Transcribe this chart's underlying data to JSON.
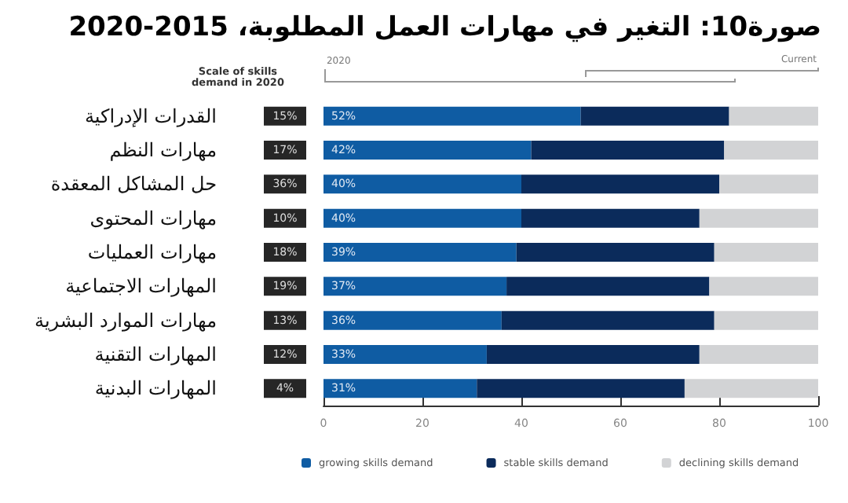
{
  "chart_data": {
    "type": "bar",
    "orientation": "horizontal",
    "stacked": true,
    "title": "صورة10: التغير في مهارات العمل المطلوبة، 2015-2020",
    "categories": [
      "القدرات الإدراكية",
      "مهارات النظم",
      "حل المشاكل المعقدة",
      "مهارات المحتوى",
      "مهارات العمليات",
      "المهارات الاجتماعية",
      "مهارات الموارد البشرية",
      "المهارات التقنية",
      "المهارات البدنية"
    ],
    "series": [
      {
        "name": "growing skills demand",
        "color": "#0f5ca3",
        "values": [
          52,
          42,
          40,
          40,
          39,
          37,
          36,
          33,
          31
        ],
        "value_labels": [
          "52%",
          "42%",
          "40%",
          "40%",
          "39%",
          "37%",
          "36%",
          "33%",
          "31%"
        ]
      },
      {
        "name": "stable skills demand",
        "color": "#0b2b5b",
        "values": [
          30,
          39,
          40,
          36,
          40,
          41,
          43,
          43,
          42
        ]
      },
      {
        "name": "declining skills demand",
        "color": "#d2d3d5",
        "values": [
          18,
          19,
          20,
          24,
          21,
          22,
          21,
          24,
          27
        ]
      }
    ],
    "xlim": [
      0,
      100
    ],
    "xticks": [
      0,
      20,
      40,
      60,
      80,
      100
    ],
    "grid": false,
    "legend": "bottom",
    "annotations": [
      "Scale of skills demand in 2020",
      "2020",
      "Current",
      "15%",
      "17%",
      "36%",
      "10%",
      "18%",
      "19%",
      "13%",
      "12%",
      "4%"
    ]
  }
}
